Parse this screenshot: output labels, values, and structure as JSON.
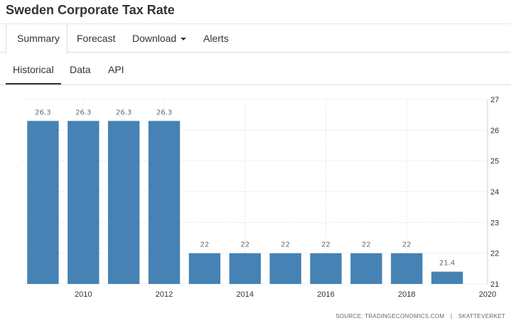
{
  "page": {
    "title": "Sweden Corporate Tax Rate"
  },
  "main_tabs": [
    {
      "label": "Summary",
      "active": true
    },
    {
      "label": "Forecast",
      "active": false
    },
    {
      "label": "Download",
      "active": false
    },
    {
      "label": "Alerts",
      "active": false
    }
  ],
  "sub_tabs": [
    {
      "label": "Historical",
      "active": true
    },
    {
      "label": "Data",
      "active": false
    },
    {
      "label": "API",
      "active": false
    }
  ],
  "source": {
    "label": "SOURCE:",
    "provider": "TRADINGECONOMICS.COM",
    "separator": "|",
    "origin": "SKATTEVERKET"
  },
  "colors": {
    "bar": "#4682b4",
    "grid": "#d6d6d6",
    "text": "#333333"
  },
  "chart_data": {
    "type": "bar",
    "title": "",
    "xlabel": "",
    "ylabel": "",
    "categories": [
      "2009",
      "2010",
      "2011",
      "2012",
      "2013",
      "2014",
      "2015",
      "2016",
      "2017",
      "2018",
      "2019"
    ],
    "values": [
      26.3,
      26.3,
      26.3,
      26.3,
      22,
      22,
      22,
      22,
      22,
      22,
      21.4
    ],
    "data_labels": [
      "26.3",
      "26.3",
      "26.3",
      "26.3",
      "22",
      "22",
      "22",
      "22",
      "22",
      "22",
      "21.4"
    ],
    "ylim": [
      21,
      27
    ],
    "y_ticks": [
      "21",
      "22",
      "23",
      "24",
      "25",
      "26",
      "27"
    ],
    "x_range": [
      2008.5,
      2020
    ],
    "x_ticks": [
      "2010",
      "2012",
      "2014",
      "2016",
      "2018",
      "2020"
    ],
    "y_axis_position": "right",
    "grid": true,
    "legend": "none"
  }
}
